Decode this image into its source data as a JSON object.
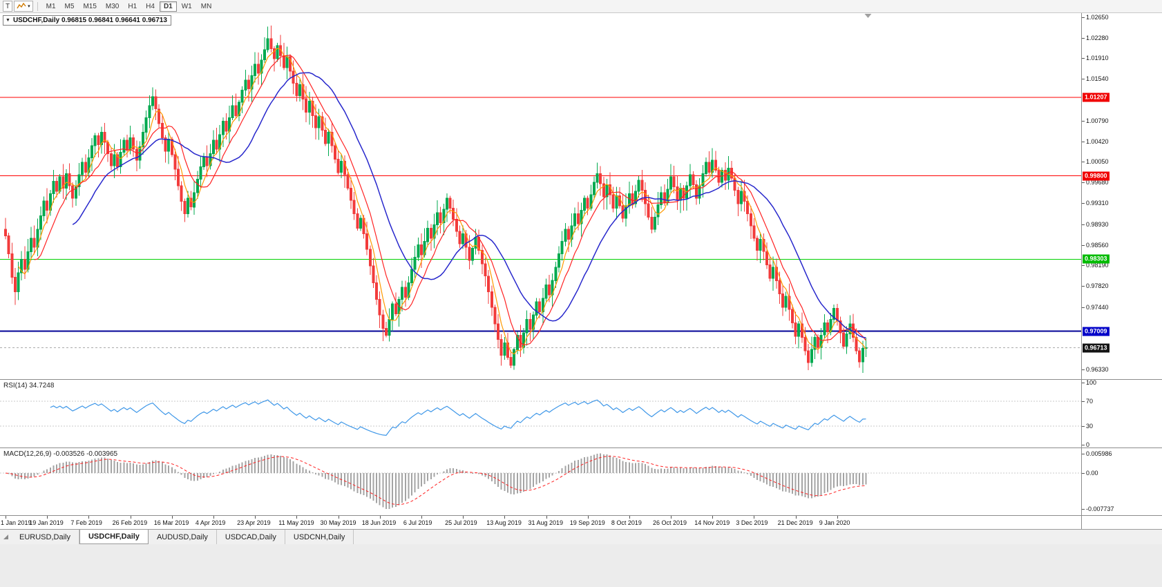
{
  "toolbar": {
    "tool_buttons": [
      {
        "name": "crosshair-tool-button",
        "label": "T"
      },
      {
        "name": "indicators-menu-button",
        "label": ""
      }
    ],
    "timeframes": [
      "M1",
      "M5",
      "M15",
      "M30",
      "H1",
      "H4",
      "D1",
      "W1",
      "MN"
    ],
    "active_timeframe": "D1"
  },
  "chart": {
    "title": "USDCHF,Daily 0.96815 0.96841 0.96641 0.96713",
    "symbol": "USDCHF",
    "period": "Daily",
    "price_axis_labels": [
      "1.02650",
      "1.02280",
      "1.01910",
      "1.01540",
      "1.00790",
      "1.00420",
      "1.00050",
      "0.99680",
      "0.99310",
      "0.98930",
      "0.98560",
      "0.98190",
      "0.97820",
      "0.97440",
      "0.96330"
    ],
    "price_badges": [
      {
        "text": "1.01207",
        "price": 1.01207,
        "color": "#f00000"
      },
      {
        "text": "0.99800",
        "price": 0.998,
        "color": "#f00000"
      },
      {
        "text": "0.98303",
        "price": 0.98303,
        "color": "#00bb00"
      },
      {
        "text": "0.97009",
        "price": 0.97009,
        "color": "#0000c8"
      },
      {
        "text": "0.96713",
        "price": 0.96713,
        "color": "#141414"
      }
    ]
  },
  "indicators": {
    "rsi": {
      "label": "RSI(14) 34.7248",
      "period": 14,
      "current_value": 34.7248,
      "levels": [
        100,
        70,
        30,
        0
      ],
      "line_color": "#3e97e8"
    },
    "macd": {
      "label": "MACD(12,26,9) -0.003526 -0.003965",
      "fast": 12,
      "slow": 26,
      "signal": 9,
      "current_values": [
        "-0.003526",
        "-0.003965"
      ],
      "axis_labels": [
        "0.005986",
        "0.00",
        "-0.007737"
      ],
      "histogram_color": "#a4a4a4",
      "signal_color": "#ff2020"
    }
  },
  "tabs": {
    "items": [
      "EURUSD,Daily",
      "USDCHF,Daily",
      "AUDUSD,Daily",
      "USDCAD,Daily",
      "USDCNH,Daily"
    ],
    "active": "USDCHF,Daily"
  },
  "chart_data": {
    "type": "candlestick",
    "symbol": "USDCHF",
    "timeframe": "Daily",
    "open": 0.96815,
    "high": 0.96841,
    "low": 0.96641,
    "close": 0.96713,
    "view": {
      "price_max": 1.0272,
      "price_min": 0.9615
    },
    "up_color": "#00a94f",
    "down_color": "#f23b3b",
    "moving_averages": [
      {
        "period": 5,
        "color": "#ff9900"
      },
      {
        "period": 10,
        "color": "#ff2222"
      },
      {
        "period": 22,
        "color": "#2727cc"
      }
    ],
    "hlines": [
      {
        "price": 1.01207,
        "color": "#ff0000",
        "width": 1,
        "dashed": false
      },
      {
        "price": 0.998,
        "color": "#ff0000",
        "width": 1,
        "dashed": false
      },
      {
        "price": 0.98303,
        "color": "#00d200",
        "width": 1,
        "dashed": false
      },
      {
        "price": 0.97009,
        "color": "#000096",
        "width": 2,
        "dashed": false
      },
      {
        "price": 0.96713,
        "color": "#aaaaaa",
        "width": 1,
        "dashed": true
      }
    ],
    "date_labels": [
      "1 Jan 2019",
      "19 Jan 2019",
      "7 Feb 2019",
      "26 Feb 2019",
      "16 Mar 2019",
      "4 Apr 2019",
      "23 Apr 2019",
      "11 May 2019",
      "30 May 2019",
      "18 Jun 2019",
      "6 Jul 2019",
      "25 Jul 2019",
      "13 Aug 2019",
      "31 Aug 2019",
      "19 Sep 2019",
      "8 Oct 2019",
      "26 Oct 2019",
      "14 Nov 2019",
      "3 Dec 2019",
      "21 Dec 2019",
      "9 Jan 2020"
    ],
    "bars_per_label": 13,
    "closes": [
      0.9872,
      0.984,
      0.9798,
      0.9772,
      0.9806,
      0.983,
      0.9812,
      0.9844,
      0.9868,
      0.9852,
      0.9884,
      0.9908,
      0.9935,
      0.9918,
      0.9948,
      0.997,
      0.9952,
      0.9978,
      0.9958,
      0.9984,
      0.9962,
      0.994,
      0.996,
      0.9982,
      1.0004,
      0.9986,
      1.0012,
      1.0034,
      1.0052,
      1.0036,
      1.0058,
      1.004,
      1.002,
      0.9998,
      1.0018,
      0.9996,
      1.0022,
      1.0044,
      1.0026,
      1.0048,
      1.0028,
      1.0008,
      1.0032,
      1.0058,
      1.0084,
      1.0106,
      1.0122,
      1.01,
      1.0074,
      1.0048,
      1.0024,
      1.0046,
      1.0018,
      0.9992,
      0.9962,
      0.9934,
      0.9912,
      0.994,
      0.9924,
      0.995,
      0.9974,
      0.9996,
      1.0014,
      0.9998,
      1.002,
      1.0044,
      1.0028,
      1.0054,
      1.0078,
      1.006,
      1.0084,
      1.0106,
      1.0088,
      1.0112,
      1.0134,
      1.0152,
      1.0136,
      1.016,
      1.018,
      1.0164,
      1.0188,
      1.0206,
      1.0226,
      1.0208,
      1.019,
      1.0214,
      1.0196,
      1.0174,
      1.0194,
      1.0168,
      1.0146,
      1.0124,
      1.0144,
      1.0118,
      1.0094,
      1.0114,
      1.0088,
      1.0066,
      1.0086,
      1.0062,
      1.0038,
      1.0058,
      1.0034,
      1.001,
      0.9986,
      1.0006,
      0.9982,
      0.9958,
      0.9936,
      0.9912,
      0.9886,
      0.9904,
      0.9876,
      0.9848,
      0.9818,
      0.9788,
      0.9758,
      0.973,
      0.9706,
      0.9694,
      0.9722,
      0.975,
      0.9732,
      0.9758,
      0.978,
      0.9762,
      0.9788,
      0.9812,
      0.9834,
      0.9856,
      0.9838,
      0.9862,
      0.9886,
      0.9868,
      0.9892,
      0.9914,
      0.9896,
      0.992,
      0.994,
      0.9922,
      0.9902,
      0.988,
      0.9858,
      0.9876,
      0.9852,
      0.9828,
      0.985,
      0.987,
      0.9846,
      0.9822,
      0.98,
      0.9772,
      0.9744,
      0.9714,
      0.9686,
      0.9658,
      0.968,
      0.9654,
      0.964,
      0.9668,
      0.9694,
      0.9672,
      0.9698,
      0.9722,
      0.9704,
      0.973,
      0.9754,
      0.9736,
      0.976,
      0.9784,
      0.9766,
      0.9792,
      0.9816,
      0.984,
      0.9862,
      0.9884,
      0.9866,
      0.989,
      0.9912,
      0.9894,
      0.9918,
      0.994,
      0.9922,
      0.9946,
      0.9968,
      0.9984,
      0.9966,
      0.9942,
      0.9964,
      0.9946,
      0.9922,
      0.9944,
      0.9926,
      0.9904,
      0.9926,
      0.9948,
      0.993,
      0.9952,
      0.9972,
      0.9954,
      0.993,
      0.9906,
      0.9884,
      0.9906,
      0.9928,
      0.995,
      0.9932,
      0.9956,
      0.9978,
      0.996,
      0.9936,
      0.9958,
      0.994,
      0.9962,
      0.9982,
      0.9964,
      0.994,
      0.9962,
      0.9984,
      1.0004,
      0.9986,
      1.0008,
      0.999,
      0.9968,
      0.999,
      0.9972,
      0.9994,
      0.9976,
      0.9954,
      0.993,
      0.9952,
      0.9934,
      0.9912,
      0.989,
      0.9868,
      0.9846,
      0.9866,
      0.9844,
      0.982,
      0.9796,
      0.9816,
      0.9792,
      0.9768,
      0.9744,
      0.9764,
      0.974,
      0.9716,
      0.9692,
      0.9714,
      0.969,
      0.9666,
      0.9645,
      0.9668,
      0.969,
      0.9672,
      0.9694,
      0.9716,
      0.97,
      0.9722,
      0.9742,
      0.972,
      0.9698,
      0.9674,
      0.9696,
      0.9714,
      0.969,
      0.9666,
      0.9646,
      0.967,
      0.96713
    ]
  }
}
